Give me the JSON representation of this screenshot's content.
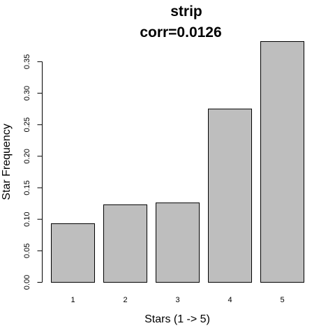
{
  "chart_data": {
    "type": "bar",
    "title": "strip",
    "subtitle": "corr=0.0126",
    "xlabel": "Stars (1 -> 5)",
    "ylabel": "Star Frequency",
    "categories": [
      "1",
      "2",
      "3",
      "4",
      "5"
    ],
    "values": [
      0.093,
      0.123,
      0.126,
      0.275,
      0.382
    ],
    "ylim": [
      0,
      0.382
    ],
    "yticks": [
      0.0,
      0.05,
      0.1,
      0.15,
      0.2,
      0.25,
      0.3,
      0.35
    ],
    "ytick_labels": [
      "0.00",
      "0.05",
      "0.10",
      "0.15",
      "0.20",
      "0.25",
      "0.30",
      "0.35"
    ],
    "bar_color": "#bebebe",
    "grid": false,
    "legend": "none"
  }
}
